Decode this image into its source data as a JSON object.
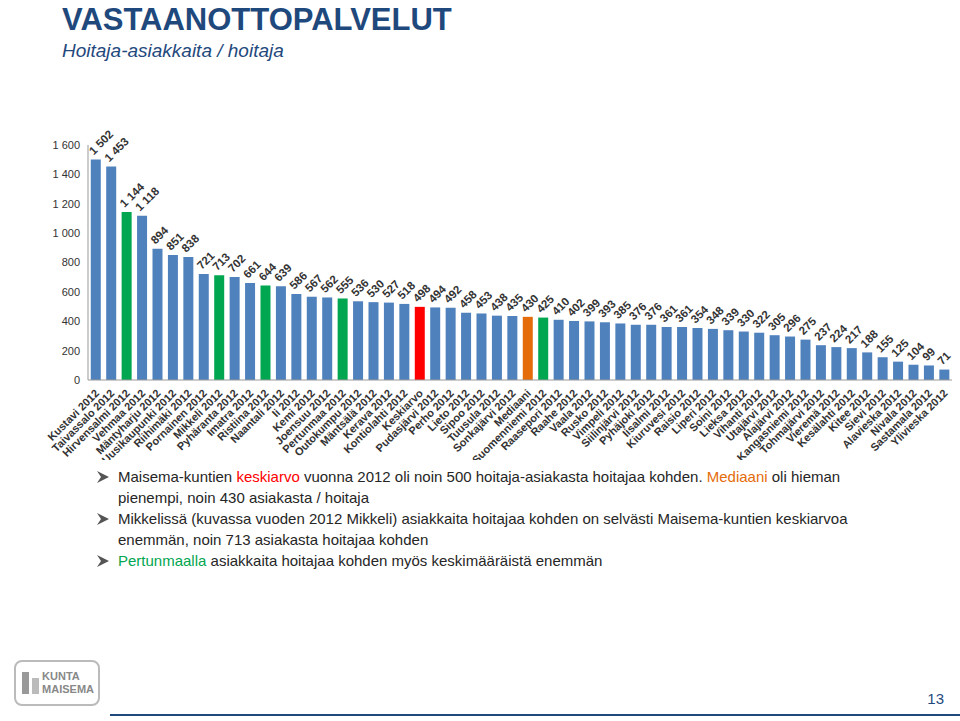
{
  "chart_data": {
    "type": "bar",
    "title": "VASTAANOTTOPALVELUT",
    "subtitle": "Hoitaja-asiakkaita / hoitaja",
    "categories": [
      "Kustavi 2012",
      "Taivassalo 2012",
      "Hirvensalmi 2012",
      "Vehmaa 2012",
      "Mäntyharju 2012",
      "Uusikaupunki 2012",
      "Riihimäki 2012",
      "Pornainen 2012",
      "Mikkeli 2012",
      "Pyhäranta 2012",
      "Imatra 2012",
      "Ristiina 2012",
      "Naantali 2012",
      "Ii 2012",
      "Kemi 2012",
      "Joensuu 2012",
      "Pertunmaa 2012",
      "Outokumpu 2012",
      "Mäntsälä 2012",
      "Kerava 2012",
      "Kontiolahti 2012",
      "Keskiarvo",
      "Pudasjärvi 2012",
      "Perho 2012",
      "Lieto 2012",
      "Sipoo 2012",
      "Tuusula 2012",
      "Sonkajärvi 2012",
      "Mediaani",
      "Suomenniemi 2012",
      "Raasepori 2012",
      "Raahe 2012",
      "Vaala 2012",
      "Rusko 2012",
      "Vimpeli 2012",
      "Siilinjärvi 2012",
      "Pyhäjoki 2012",
      "Iisalmi 2012",
      "Kiuruvesi 2012",
      "Raisio 2012",
      "Liperi 2012",
      "Soini 2012",
      "Lieksa 2012",
      "Vihanti 2012",
      "Utajärvi 2012",
      "Alajärvi 2012",
      "Kangasniemi 2012",
      "Tohmajärvi 2012",
      "Vieremä 2012",
      "Kesälahti 2012",
      "Kitee 2012",
      "Sievi 2012",
      "Alavieska 2012",
      "Nivala 2012",
      "Sastamala 2012",
      "Ylivieska 2012"
    ],
    "values": [
      1502,
      1453,
      1144,
      1118,
      894,
      851,
      838,
      721,
      713,
      702,
      661,
      644,
      639,
      586,
      567,
      562,
      555,
      536,
      530,
      527,
      518,
      498,
      494,
      492,
      458,
      453,
      438,
      435,
      430,
      425,
      410,
      402,
      399,
      393,
      385,
      376,
      376,
      361,
      361,
      354,
      348,
      339,
      330,
      322,
      305,
      296,
      275,
      237,
      224,
      217,
      188,
      155,
      125,
      104,
      99,
      71
    ],
    "value_labels": [
      "1 502",
      "1 453",
      "1 144",
      "1 118",
      "894",
      "851",
      "838",
      "721",
      "713",
      "702",
      "661",
      "644",
      "639",
      "586",
      "567",
      "562",
      "555",
      "536",
      "530",
      "527",
      "518",
      "498",
      "494",
      "492",
      "458",
      "453",
      "438",
      "435",
      "430",
      "425",
      "410",
      "402",
      "399",
      "393",
      "385",
      "376",
      "376",
      "361",
      "361",
      "354",
      "348",
      "339",
      "330",
      "322",
      "305",
      "296",
      "275",
      "237",
      "224",
      "217",
      "188",
      "155",
      "125",
      "104",
      "99",
      "71"
    ],
    "colors": [
      "#4f81bd",
      "#4f81bd",
      "#00a650",
      "#4f81bd",
      "#4f81bd",
      "#4f81bd",
      "#4f81bd",
      "#4f81bd",
      "#00a650",
      "#4f81bd",
      "#4f81bd",
      "#00a650",
      "#4f81bd",
      "#4f81bd",
      "#4f81bd",
      "#4f81bd",
      "#00a650",
      "#4f81bd",
      "#4f81bd",
      "#4f81bd",
      "#4f81bd",
      "#ff0000",
      "#4f81bd",
      "#4f81bd",
      "#4f81bd",
      "#4f81bd",
      "#4f81bd",
      "#4f81bd",
      "#e46c0a",
      "#00a650",
      "#4f81bd",
      "#4f81bd",
      "#4f81bd",
      "#4f81bd",
      "#4f81bd",
      "#4f81bd",
      "#4f81bd",
      "#4f81bd",
      "#4f81bd",
      "#4f81bd",
      "#4f81bd",
      "#4f81bd",
      "#4f81bd",
      "#4f81bd",
      "#4f81bd",
      "#4f81bd",
      "#4f81bd",
      "#4f81bd",
      "#4f81bd",
      "#4f81bd",
      "#4f81bd",
      "#4f81bd",
      "#4f81bd",
      "#4f81bd",
      "#4f81bd",
      "#4f81bd"
    ],
    "ylim": [
      0,
      1600
    ],
    "yticks": [
      0,
      200,
      400,
      600,
      800,
      {
        "value": 1000,
        "label": "1 000"
      },
      {
        "value": 1200,
        "label": "1 200"
      },
      {
        "value": 1400,
        "label": "1 400"
      },
      {
        "value": 1600,
        "label": "1 600"
      }
    ],
    "grid": false,
    "data_labels": true
  },
  "bullets": [
    [
      {
        "text": "Maisema-kuntien "
      },
      {
        "text": "keskiarvo",
        "color": "#ff0000"
      },
      {
        "text": " vuonna 2012 oli noin 500 hoitaja-asiakasta hoitajaa kohden. "
      },
      {
        "text": "Mediaani",
        "color": "#e46c0a"
      },
      {
        "text": " oli hieman pienempi, noin 430 asiakasta / hoitaja"
      }
    ],
    [
      {
        "text": "Mikkelissä (kuvassa vuoden 2012 Mikkeli) asiakkaita hoitajaa kohden on selvästi Maisema-kuntien keskiarvoa enemmän, noin 713 asiakasta hoitajaa kohden"
      }
    ],
    [
      {
        "text": "Pertunmaalla",
        "color": "#00a650"
      },
      {
        "text": " asiakkaita hoitajaa kohden myös keskimääräistä enemmän"
      }
    ]
  ],
  "footer": {
    "logo": [
      "KUNTA",
      "MAISEMA"
    ],
    "page": "13"
  }
}
